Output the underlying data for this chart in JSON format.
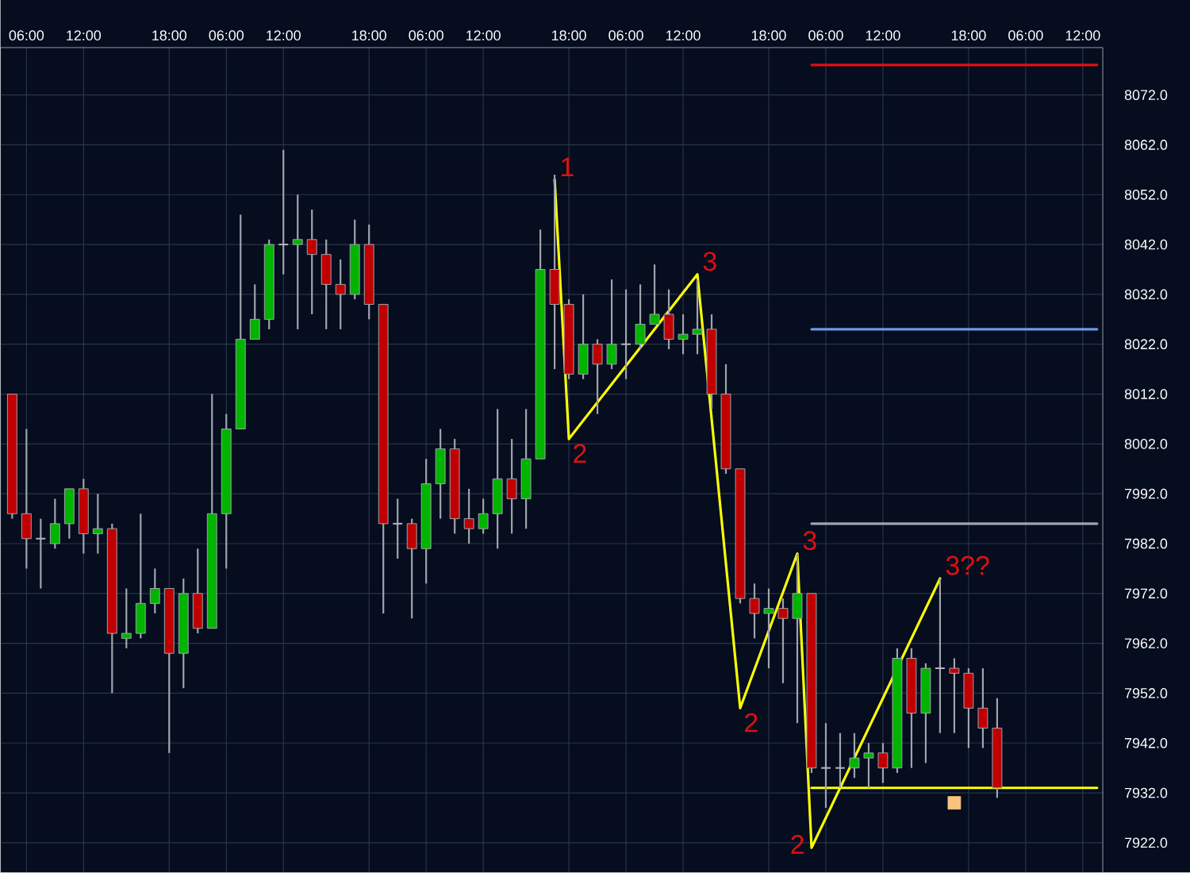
{
  "chart_data": {
    "type": "candlestick",
    "categories": [
      null,
      "06:00",
      null,
      null,
      null,
      "12:00",
      null,
      null,
      null,
      null,
      null,
      "18:00",
      null,
      null,
      null,
      "06:00",
      null,
      null,
      null,
      "12:00",
      null,
      null,
      null,
      null,
      null,
      "18:00",
      null,
      null,
      null,
      "06:00",
      null,
      null,
      null,
      "12:00",
      null,
      null,
      null,
      null,
      null,
      "18:00",
      null,
      null,
      null,
      "06:00",
      null,
      null,
      null,
      "12:00",
      null,
      null,
      null,
      null,
      null,
      "18:00",
      null,
      null,
      null,
      "06:00",
      null,
      null,
      null,
      "12:00",
      null,
      null,
      null,
      null,
      null,
      "18:00",
      null,
      null,
      null,
      "06:00",
      null,
      null,
      null,
      "12:00",
      null
    ],
    "ohlc": [
      [
        8012,
        8012,
        7987,
        7988
      ],
      [
        7988,
        8005,
        7977,
        7983
      ],
      [
        7983,
        7987,
        7973,
        7983
      ],
      [
        7982,
        7991,
        7981,
        7986
      ],
      [
        7986,
        7993,
        7983,
        7993
      ],
      [
        7993,
        7995,
        7980,
        7984
      ],
      [
        7984,
        7992,
        7980,
        7985
      ],
      [
        7985,
        7986,
        7952,
        7964
      ],
      [
        7963,
        7973,
        7961,
        7964
      ],
      [
        7964,
        7988,
        7963,
        7970
      ],
      [
        7970,
        7977,
        7968,
        7973
      ],
      [
        7973,
        7973,
        7940,
        7960
      ],
      [
        7960,
        7975,
        7953,
        7972
      ],
      [
        7972,
        7981,
        7964,
        7965
      ],
      [
        7965,
        8012,
        7965,
        7988
      ],
      [
        7988,
        8008,
        7977,
        8005
      ],
      [
        8005,
        8048,
        8005,
        8023
      ],
      [
        8023,
        8034,
        8023,
        8027
      ],
      [
        8027,
        8043,
        8025,
        8042
      ],
      [
        8042,
        8061,
        8036,
        8042
      ],
      [
        8042,
        8052,
        8025,
        8043
      ],
      [
        8043,
        8049,
        8028,
        8040
      ],
      [
        8040,
        8043,
        8025,
        8034
      ],
      [
        8034,
        8039,
        8025,
        8032
      ],
      [
        8032,
        8047,
        8031,
        8042
      ],
      [
        8042,
        8046,
        8027,
        8030
      ],
      [
        8030,
        8030,
        7968,
        7986
      ],
      [
        7986,
        7991,
        7979,
        7986
      ],
      [
        7986,
        7987,
        7967,
        7981
      ],
      [
        7981,
        7999,
        7974,
        7994
      ],
      [
        7994,
        8005,
        7987,
        8001
      ],
      [
        8001,
        8003,
        7984,
        7987
      ],
      [
        7987,
        7993,
        7982,
        7985
      ],
      [
        7985,
        7991,
        7984,
        7988
      ],
      [
        7988,
        8009,
        7981,
        7995
      ],
      [
        7995,
        8003,
        7984,
        7991
      ],
      [
        7991,
        8009,
        7985,
        7999
      ],
      [
        7999,
        8045,
        7999,
        8037
      ],
      [
        8037,
        8056,
        8017,
        8030
      ],
      [
        8030,
        8031,
        8015,
        8016
      ],
      [
        8016,
        8032,
        8015,
        8022
      ],
      [
        8022,
        8023,
        8008,
        8018
      ],
      [
        8018,
        8035,
        8017,
        8022
      ],
      [
        8022,
        8033,
        8015,
        8022
      ],
      [
        8022,
        8034,
        8021,
        8026
      ],
      [
        8026,
        8038,
        8026,
        8028
      ],
      [
        8028,
        8033,
        8021,
        8023
      ],
      [
        8023,
        8028,
        8020,
        8024
      ],
      [
        8024,
        8035,
        8020,
        8025
      ],
      [
        8025,
        8028,
        8009,
        8012
      ],
      [
        8012,
        8018,
        7996,
        7997
      ],
      [
        7997,
        7997,
        7970,
        7971
      ],
      [
        7971,
        7974,
        7963,
        7968
      ],
      [
        7968,
        7973,
        7957,
        7969
      ],
      [
        7969,
        7971,
        7954,
        7967
      ],
      [
        7967,
        7980,
        7946,
        7972
      ],
      [
        7972,
        7972,
        7936,
        7937
      ],
      [
        7937,
        7946,
        7929,
        7937
      ],
      [
        7937,
        7944,
        7933,
        7937
      ],
      [
        7937,
        7944,
        7935,
        7939
      ],
      [
        7939,
        7942,
        7933,
        7940
      ],
      [
        7940,
        7942,
        7934,
        7937
      ],
      [
        7937,
        7961,
        7936,
        7959
      ],
      [
        7959,
        7961,
        7937,
        7948
      ],
      [
        7948,
        7958,
        7938,
        7957
      ],
      [
        7957,
        7975,
        7944,
        7957
      ],
      [
        7957,
        7959,
        7944,
        7956
      ],
      [
        7956,
        7957,
        7941,
        7949
      ],
      [
        7949,
        7957,
        7941,
        7945
      ],
      [
        7945,
        7951,
        7931,
        7933
      ],
      null,
      null,
      null,
      null,
      null,
      null,
      null
    ],
    "series": [
      {
        "type": "line",
        "color": "#ffff00",
        "values": [
          null,
          null,
          null,
          null,
          null,
          null,
          null,
          null,
          null,
          null,
          null,
          null,
          null,
          null,
          null,
          null,
          null,
          null,
          null,
          null,
          null,
          null,
          null,
          null,
          null,
          null,
          null,
          null,
          null,
          null,
          null,
          null,
          null,
          null,
          null,
          null,
          null,
          null,
          8055,
          8003,
          null,
          null,
          null,
          null,
          null,
          null,
          null,
          null,
          8036,
          null,
          null,
          7949,
          null,
          null,
          null,
          7980,
          7921,
          null,
          null,
          null,
          null,
          null,
          null,
          null,
          null,
          7975,
          null,
          null,
          null,
          null,
          null,
          null,
          null,
          null,
          null,
          null,
          null
        ]
      },
      {
        "type": "line",
        "color": "#e01010",
        "values": [
          null,
          null,
          null,
          null,
          null,
          null,
          null,
          null,
          null,
          null,
          null,
          null,
          null,
          null,
          null,
          null,
          null,
          null,
          null,
          null,
          null,
          null,
          null,
          null,
          null,
          null,
          null,
          null,
          null,
          null,
          null,
          null,
          null,
          null,
          null,
          null,
          null,
          null,
          null,
          null,
          null,
          null,
          null,
          null,
          null,
          null,
          null,
          null,
          null,
          null,
          null,
          null,
          null,
          null,
          null,
          null,
          8078,
          8078,
          8078,
          8078,
          8078,
          8078,
          8078,
          8078,
          8078,
          8078,
          8078,
          8078,
          8078,
          8078,
          8078,
          8078,
          8078,
          8078,
          8078,
          8078,
          8078
        ]
      },
      {
        "type": "line",
        "color": "#6a9ae0",
        "values": [
          null,
          null,
          null,
          null,
          null,
          null,
          null,
          null,
          null,
          null,
          null,
          null,
          null,
          null,
          null,
          null,
          null,
          null,
          null,
          null,
          null,
          null,
          null,
          null,
          null,
          null,
          null,
          null,
          null,
          null,
          null,
          null,
          null,
          null,
          null,
          null,
          null,
          null,
          null,
          null,
          null,
          null,
          null,
          null,
          null,
          null,
          null,
          null,
          null,
          null,
          null,
          null,
          null,
          null,
          null,
          null,
          8025,
          8025,
          8025,
          8025,
          8025,
          8025,
          8025,
          8025,
          8025,
          8025,
          8025,
          8025,
          8025,
          8025,
          8025,
          8025,
          8025,
          8025,
          8025,
          8025,
          8025
        ]
      },
      {
        "type": "line",
        "color": "#a0a4ac",
        "values": [
          null,
          null,
          null,
          null,
          null,
          null,
          null,
          null,
          null,
          null,
          null,
          null,
          null,
          null,
          null,
          null,
          null,
          null,
          null,
          null,
          null,
          null,
          null,
          null,
          null,
          null,
          null,
          null,
          null,
          null,
          null,
          null,
          null,
          null,
          null,
          null,
          null,
          null,
          null,
          null,
          null,
          null,
          null,
          null,
          null,
          null,
          null,
          null,
          null,
          null,
          null,
          null,
          null,
          null,
          null,
          null,
          7986,
          7986,
          7986,
          7986,
          7986,
          7986,
          7986,
          7986,
          7986,
          7986,
          7986,
          7986,
          7986,
          7986,
          7986,
          7986,
          7986,
          7986,
          7986,
          7986,
          7986
        ]
      },
      {
        "type": "line",
        "color": "#ffff00",
        "values": [
          null,
          null,
          null,
          null,
          null,
          null,
          null,
          null,
          null,
          null,
          null,
          null,
          null,
          null,
          null,
          null,
          null,
          null,
          null,
          null,
          null,
          null,
          null,
          null,
          null,
          null,
          null,
          null,
          null,
          null,
          null,
          null,
          null,
          null,
          null,
          null,
          null,
          null,
          null,
          null,
          null,
          null,
          null,
          null,
          null,
          null,
          null,
          null,
          null,
          null,
          null,
          null,
          null,
          null,
          null,
          null,
          7933,
          7933,
          7933,
          7933,
          7933,
          7933,
          7933,
          7933,
          7933,
          7933,
          7933,
          7933,
          7933,
          7933,
          7933,
          7933,
          7933,
          7933,
          7933,
          7933,
          7933
        ]
      },
      {
        "type": "scatter",
        "color": "#f8c37c",
        "marker": "square",
        "values": [
          null,
          null,
          null,
          null,
          null,
          null,
          null,
          null,
          null,
          null,
          null,
          null,
          null,
          null,
          null,
          null,
          null,
          null,
          null,
          null,
          null,
          null,
          null,
          null,
          null,
          null,
          null,
          null,
          null,
          null,
          null,
          null,
          null,
          null,
          null,
          null,
          null,
          null,
          null,
          null,
          null,
          null,
          null,
          null,
          null,
          null,
          null,
          null,
          null,
          null,
          null,
          null,
          null,
          null,
          null,
          null,
          null,
          null,
          null,
          null,
          null,
          null,
          null,
          null,
          null,
          null,
          7930,
          null,
          null,
          null,
          null,
          null,
          null,
          null,
          null,
          null,
          null
        ]
      }
    ],
    "annotations": [
      "1",
      "2",
      "3",
      "2",
      "3",
      "2",
      "3??"
    ],
    "ylim": [
      7916,
      8081.5
    ],
    "yticks": [
      {
        "value": 7922,
        "label": "7922.0"
      },
      {
        "value": 7932,
        "label": "7932.0"
      },
      {
        "value": 7942,
        "label": "7942.0"
      },
      {
        "value": 7952,
        "label": "7952.0"
      },
      {
        "value": 7962,
        "label": "7962.0"
      },
      {
        "value": 7972,
        "label": "7972.0"
      },
      {
        "value": 7982,
        "label": "7982.0"
      },
      {
        "value": 7992,
        "label": "7992.0"
      },
      {
        "value": 8002,
        "label": "8002.0"
      },
      {
        "value": 8012,
        "label": "8012.0"
      },
      {
        "value": 8022,
        "label": "8022.0"
      },
      {
        "value": 8032,
        "label": "8032.0"
      },
      {
        "value": 8042,
        "label": "8042.0"
      },
      {
        "value": 8052,
        "label": "8052.0"
      },
      {
        "value": 8062,
        "label": "8062.0"
      },
      {
        "value": 8072,
        "label": "8072.0"
      }
    ],
    "grid": true
  }
}
